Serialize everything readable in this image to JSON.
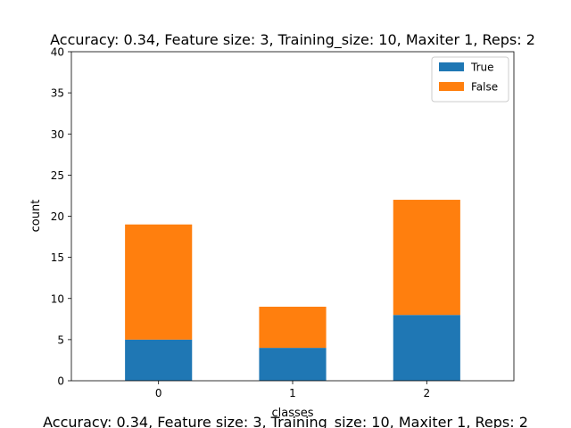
{
  "chart_data": {
    "type": "bar",
    "stacked": true,
    "title": "Accuracy: 0.34, Feature size: 3, Training_size: 10, Maxiter 1, Reps: 2",
    "caption": "Accuracy: 0.34, Feature size: 3, Training_size: 10, Maxiter 1, Reps: 2",
    "xlabel": "classes",
    "ylabel": "count",
    "categories": [
      "0",
      "1",
      "2"
    ],
    "series": [
      {
        "name": "True",
        "values": [
          5,
          4,
          8
        ],
        "color": "#1f77b4"
      },
      {
        "name": "False",
        "values": [
          14,
          5,
          14
        ],
        "color": "#ff7f0e"
      }
    ],
    "ylim": [
      0,
      40
    ],
    "yticks": [
      0,
      5,
      10,
      15,
      20,
      25,
      30,
      35,
      40
    ],
    "grid": false,
    "legend_position": "top-right"
  }
}
